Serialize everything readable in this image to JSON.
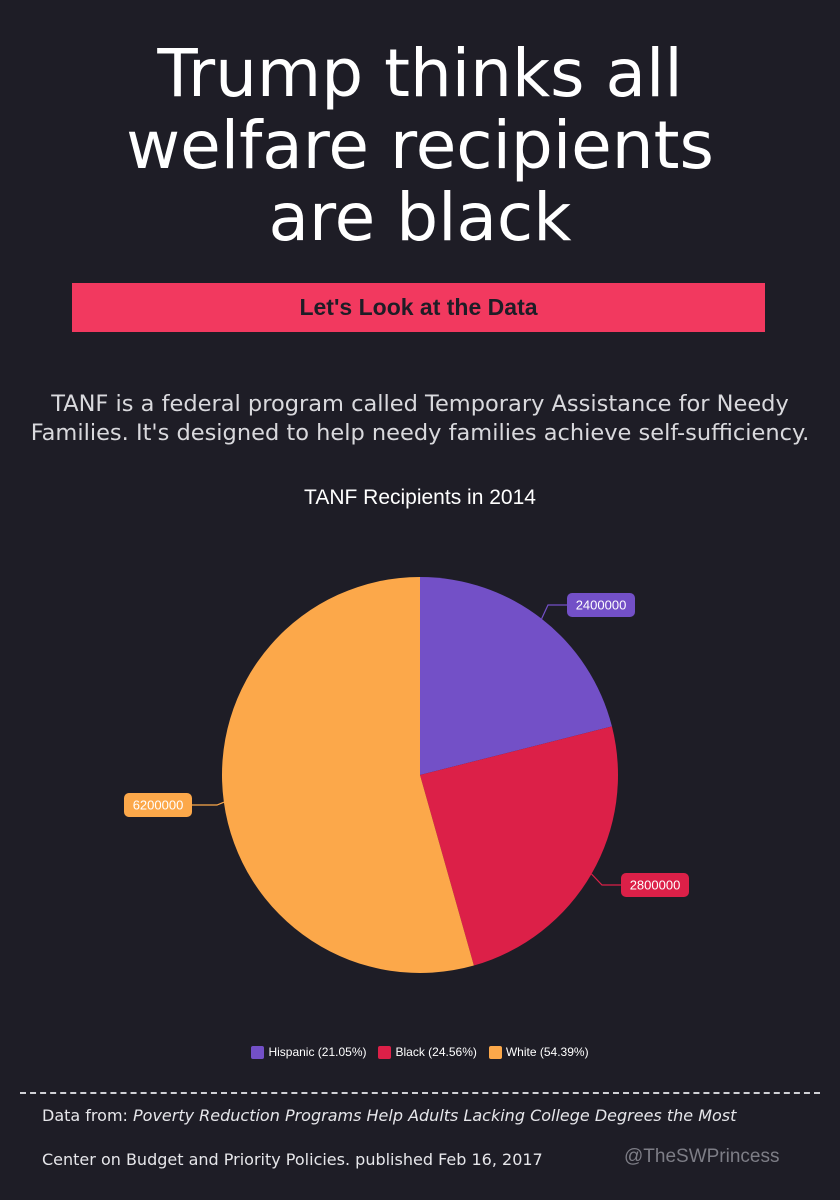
{
  "headline": {
    "line1": "Trump thinks all",
    "line2": "welfare recipients",
    "line3": "are black"
  },
  "banner": "Let's Look at the Data",
  "intro": {
    "line1": "TANF is a federal program called Temporary Assistance for Needy",
    "line2": "Families. It's designed to help needy families achieve self-sufficiency."
  },
  "footer": {
    "label": "Data from: ",
    "source_title": "Poverty Reduction Programs Help Adults Lacking College Degrees the Most",
    "publisher": "Center on Budget and Priority Policies. published Feb 16, 2017",
    "handle": "@TheSWPrincess"
  },
  "colors": {
    "background": "#1e1d26",
    "banner": "#f2395f",
    "hispanic": "#7350c7",
    "black": "#dc2048",
    "white": "#fca84a"
  },
  "chart_data": {
    "type": "pie",
    "title": "TANF Recipients in 2014",
    "categories": [
      "Hispanic",
      "Black",
      "White"
    ],
    "values": [
      2400000,
      2800000,
      6200000
    ],
    "data_labels": [
      "2400000",
      "2800000",
      "6200000"
    ],
    "legend": [
      "Hispanic (21.05%)",
      "Black (24.56%)",
      "White (54.39%)"
    ],
    "colors": [
      "#7350c7",
      "#dc2048",
      "#fca84a"
    ],
    "legend_position": "bottom"
  }
}
